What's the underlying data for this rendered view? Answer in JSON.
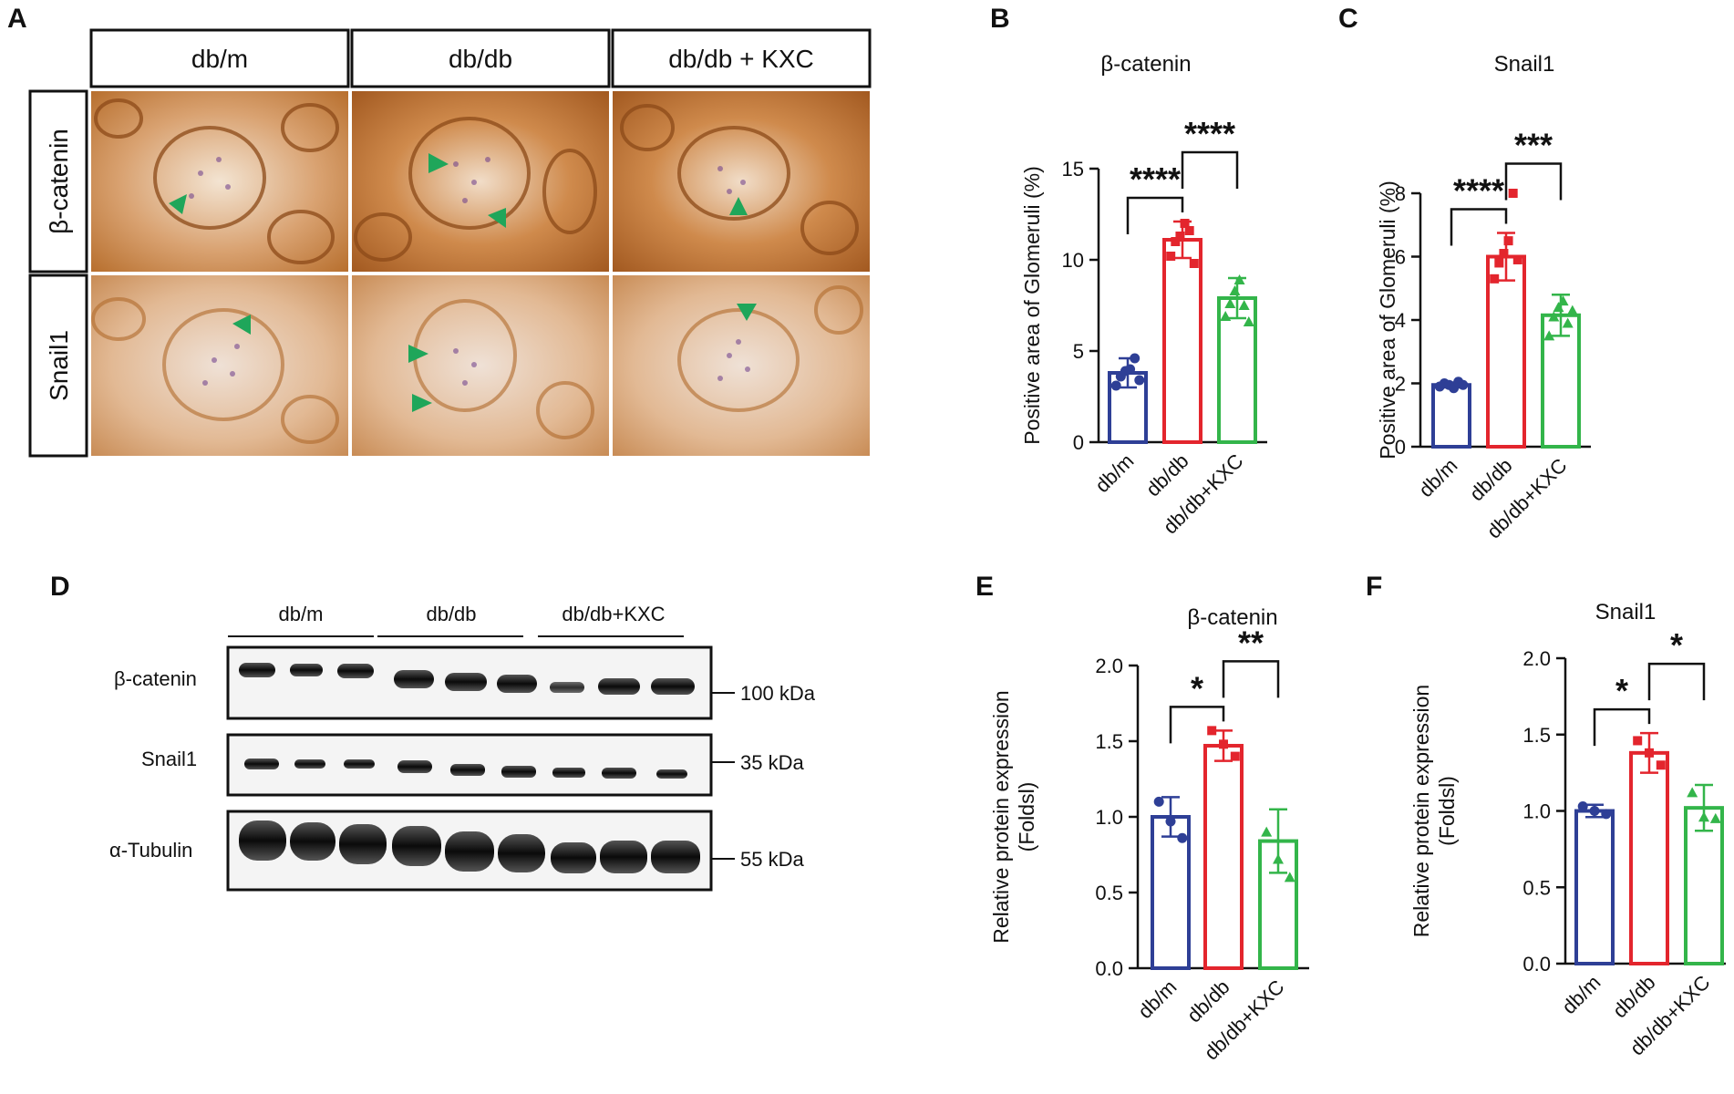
{
  "panels": {
    "A": "A",
    "B": "B",
    "C": "C",
    "D": "D",
    "E": "E",
    "F": "F"
  },
  "histology": {
    "columns": [
      "db/m",
      "db/db",
      "db/db + KXC"
    ],
    "rows": [
      "β-catenin",
      "Snail1"
    ],
    "arrow_color": "#1fa65a"
  },
  "western_blot": {
    "groups": [
      "db/m",
      "db/db",
      "db/db+KXC"
    ],
    "proteins": [
      "β-catenin",
      "Snail1",
      "α-Tubulin"
    ],
    "markers": [
      "100 kDa",
      "35 kDa",
      "55 kDa"
    ]
  },
  "chart_data": [
    {
      "id": "B",
      "type": "bar",
      "title": "β-catenin",
      "ylabel": [
        "Positive area of Glomeruli (%)"
      ],
      "categories": [
        "db/m",
        "db/db",
        "db/db+KXC"
      ],
      "colors": [
        "#2e3f96",
        "#e3252d",
        "#33b54a"
      ],
      "markers": [
        "circle",
        "square",
        "triangle"
      ],
      "values": [
        3.8,
        11.1,
        7.9
      ],
      "errors": [
        0.8,
        1.0,
        1.1
      ],
      "points": [
        [
          3.1,
          3.6,
          3.9,
          4.0,
          4.6,
          3.4
        ],
        [
          10.2,
          11.0,
          11.3,
          12.0,
          11.6,
          9.8
        ],
        [
          6.9,
          7.6,
          8.3,
          8.9,
          7.5,
          6.6
        ]
      ],
      "ylim": [
        0,
        15
      ],
      "yticks": [
        0,
        5,
        10,
        15
      ],
      "ytick_labels": [
        "0",
        "5",
        "10",
        "15"
      ],
      "comparisons": [
        {
          "from": 0,
          "to": 1,
          "label": "****"
        },
        {
          "from": 1,
          "to": 2,
          "label": "****"
        }
      ]
    },
    {
      "id": "C",
      "type": "bar",
      "title": "Snail1",
      "ylabel": [
        "Positive area of Glomeruli (%)"
      ],
      "categories": [
        "db/m",
        "db/db",
        "db/db+KXC"
      ],
      "colors": [
        "#2e3f96",
        "#e3252d",
        "#33b54a"
      ],
      "markers": [
        "circle",
        "square",
        "triangle"
      ],
      "values": [
        1.95,
        6.0,
        4.15
      ],
      "errors": [
        0.08,
        0.75,
        0.65
      ],
      "points": [
        [
          1.9,
          2.0,
          1.95,
          1.85,
          2.05,
          1.95
        ],
        [
          5.3,
          5.8,
          6.1,
          6.5,
          8.0,
          5.9
        ],
        [
          3.5,
          4.1,
          4.4,
          4.6,
          3.9,
          4.3
        ]
      ],
      "ylim": [
        0,
        8
      ],
      "yticks": [
        0,
        2,
        4,
        6,
        8
      ],
      "ytick_labels": [
        "0",
        "2",
        "4",
        "6",
        "8"
      ],
      "comparisons": [
        {
          "from": 0,
          "to": 1,
          "label": "****"
        },
        {
          "from": 1,
          "to": 2,
          "label": "***"
        }
      ]
    },
    {
      "id": "E",
      "type": "bar",
      "title": "β-catenin",
      "ylabel": [
        "Relative protein expression",
        "(Foldsl)"
      ],
      "categories": [
        "db/m",
        "db/db",
        "db/db+KXC"
      ],
      "colors": [
        "#2e3f96",
        "#e3252d",
        "#33b54a"
      ],
      "markers": [
        "circle",
        "square",
        "triangle"
      ],
      "values": [
        1.0,
        1.47,
        0.84
      ],
      "errors": [
        0.13,
        0.1,
        0.21
      ],
      "points": [
        [
          1.1,
          0.97,
          0.86
        ],
        [
          1.57,
          1.48,
          1.4
        ],
        [
          0.9,
          0.72,
          0.6
        ]
      ],
      "ylim": [
        0,
        2.0
      ],
      "yticks": [
        0,
        0.5,
        1.0,
        1.5,
        2.0
      ],
      "ytick_labels": [
        "0.0",
        "0.5",
        "1.0",
        "1.5",
        "2.0"
      ],
      "comparisons": [
        {
          "from": 0,
          "to": 1,
          "label": "*"
        },
        {
          "from": 1,
          "to": 2,
          "label": "**"
        }
      ]
    },
    {
      "id": "F",
      "type": "bar",
      "title": "Snail1",
      "ylabel": [
        "Relative protein expression",
        "(Foldsl)"
      ],
      "categories": [
        "db/m",
        "db/db",
        "db/db+KXC"
      ],
      "colors": [
        "#2e3f96",
        "#e3252d",
        "#33b54a"
      ],
      "markers": [
        "circle",
        "square",
        "triangle"
      ],
      "values": [
        1.0,
        1.38,
        1.02
      ],
      "errors": [
        0.04,
        0.13,
        0.15
      ],
      "points": [
        [
          1.03,
          1.0,
          0.98
        ],
        [
          1.46,
          1.38,
          1.3
        ],
        [
          1.12,
          0.96,
          0.95
        ]
      ],
      "ylim": [
        0,
        2.0
      ],
      "yticks": [
        0,
        0.5,
        1.0,
        1.5,
        2.0
      ],
      "ytick_labels": [
        "0.0",
        "0.5",
        "1.0",
        "1.5",
        "2.0"
      ],
      "comparisons": [
        {
          "from": 0,
          "to": 1,
          "label": "*"
        },
        {
          "from": 1,
          "to": 2,
          "label": "*"
        }
      ]
    }
  ]
}
